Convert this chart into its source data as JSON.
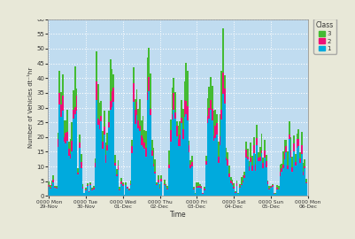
{
  "title": "",
  "xlabel": "Time",
  "ylabel": "Number of Vehicles dt⁻¹hr",
  "ylim": [
    0,
    60
  ],
  "yticks": [
    0,
    5,
    10,
    15,
    20,
    25,
    30,
    35,
    40,
    45,
    50,
    55,
    60
  ],
  "class1_color": "#00AADD",
  "class2_color": "#EE1177",
  "class3_color": "#44BB33",
  "background_color": "#E8E8D8",
  "plot_bg_color": "#C0DCF0",
  "grid_color": "white",
  "legend_title": "Class",
  "xtick_labels": [
    "0000 Mon\n29-Nov",
    "0000 Tue\n30-Nov",
    "0000 Wed\n01-Dec",
    "0000 Thu\n02-Dec",
    "0000 Fri\n03-Dec",
    "0000 Sat\n04-Dec",
    "0000 Sun\n05-Dec",
    "0000 Mon\n06-Dec"
  ],
  "n_hours": 168,
  "seed": 42
}
